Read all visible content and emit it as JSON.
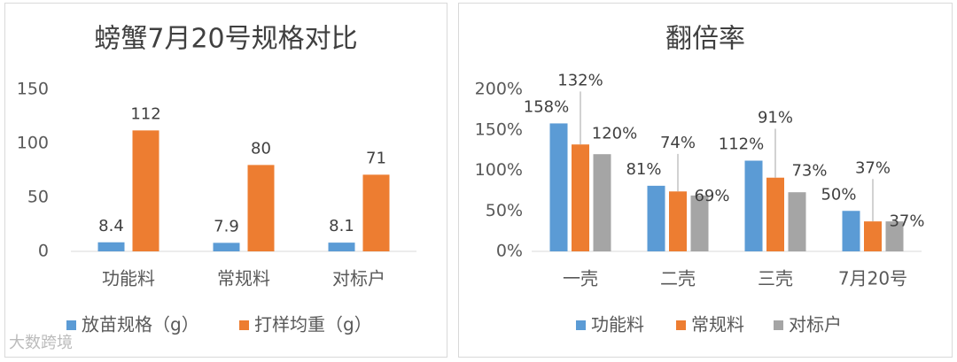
{
  "watermark": "大数跨境",
  "chart_data": [
    {
      "type": "bar",
      "title": "螃蟹7月20号规格对比",
      "categories": [
        "功能料",
        "常规料",
        "对标户"
      ],
      "series": [
        {
          "name": "放苗规格（g）",
          "color": "#5b9bd5",
          "values": [
            8.4,
            7.9,
            8.1
          ]
        },
        {
          "name": "打样均重（g）",
          "color": "#ed7d31",
          "values": [
            112,
            80,
            71
          ]
        }
      ],
      "ylim": [
        0,
        150
      ],
      "yticks": [
        0,
        50,
        100,
        150
      ],
      "grid": false
    },
    {
      "type": "bar",
      "title": "翻倍率",
      "categories": [
        "一壳",
        "二壳",
        "三壳",
        "7月20号"
      ],
      "series": [
        {
          "name": "功能料",
          "color": "#5b9bd5",
          "values": [
            158,
            81,
            112,
            50
          ],
          "value_labels": [
            "158%",
            "81%",
            "112%",
            "50%"
          ]
        },
        {
          "name": "常规料",
          "color": "#ed7d31",
          "values": [
            132,
            74,
            91,
            37
          ],
          "value_labels": [
            "132%",
            "74%",
            "91%",
            "37%"
          ]
        },
        {
          "name": "对标户",
          "color": "#a5a5a5",
          "values": [
            120,
            69,
            73,
            37
          ],
          "value_labels": [
            "120%",
            "69%",
            "73%",
            "37%"
          ]
        }
      ],
      "ylim": [
        0,
        200
      ],
      "yticks": [
        {
          "value": 0,
          "label": "0%"
        },
        {
          "value": 50,
          "label": "50%"
        },
        {
          "value": 100,
          "label": "100%"
        },
        {
          "value": 150,
          "label": "150%"
        },
        {
          "value": 200,
          "label": "200%"
        }
      ],
      "grid": false
    }
  ]
}
